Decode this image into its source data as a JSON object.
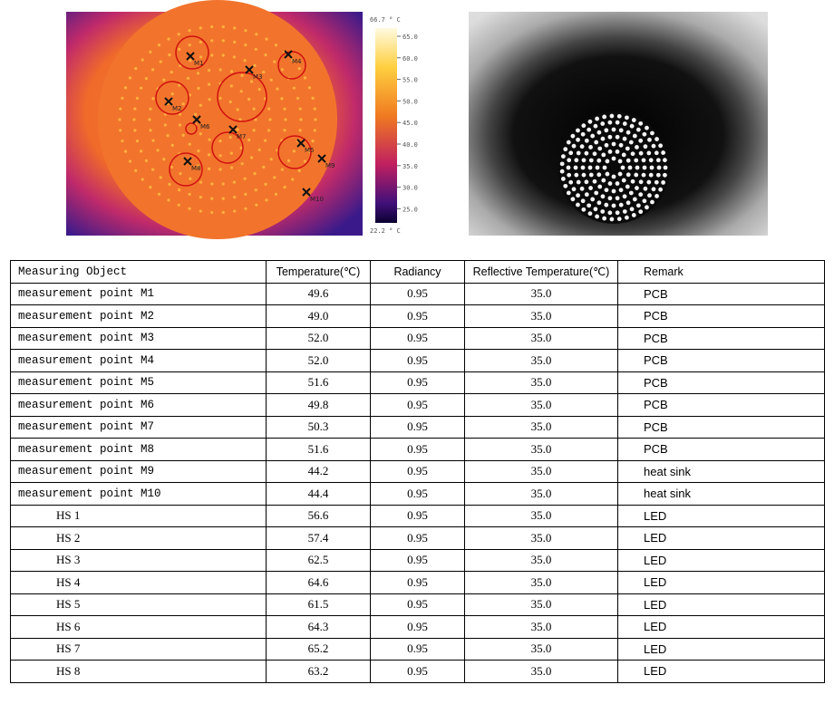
{
  "thermal_image": {
    "max_label": "66.7 ° C",
    "min_label": "22.2 ° C",
    "scale_labels": [
      "65.0",
      "60.0",
      "55.0",
      "50.0",
      "45.0",
      "40.0",
      "35.0",
      "30.0",
      "25.0"
    ],
    "markers": [
      "M1",
      "M2",
      "M3",
      "M4",
      "M5",
      "M6",
      "M7",
      "M8",
      "M9",
      "M10"
    ]
  },
  "table": {
    "header": [
      "Measuring Object",
      "Temperature(℃)",
      "Radiancy",
      "Reflective Temperature(℃)",
      "Remark"
    ],
    "rows": [
      [
        "measurement point M1",
        "49.6",
        "0.95",
        "35.0",
        "PCB"
      ],
      [
        "measurement point M2",
        "49.0",
        "0.95",
        "35.0",
        "PCB"
      ],
      [
        "measurement point M3",
        "52.0",
        "0.95",
        "35.0",
        "PCB"
      ],
      [
        "measurement point M4",
        "52.0",
        "0.95",
        "35.0",
        "PCB"
      ],
      [
        "measurement point M5",
        "51.6",
        "0.95",
        "35.0",
        "PCB"
      ],
      [
        "measurement point M6",
        "49.8",
        "0.95",
        "35.0",
        "PCB"
      ],
      [
        "measurement point M7",
        "50.3",
        "0.95",
        "35.0",
        "PCB"
      ],
      [
        "measurement point M8",
        "51.6",
        "0.95",
        "35.0",
        "PCB"
      ],
      [
        "measurement point M9",
        "44.2",
        "0.95",
        "35.0",
        "heat sink"
      ],
      [
        "measurement point M10",
        "44.4",
        "0.95",
        "35.0",
        "heat sink"
      ],
      [
        "HS 1",
        "56.6",
        "0.95",
        "35.0",
        "LED"
      ],
      [
        "HS 2",
        "57.4",
        "0.95",
        "35.0",
        "LED"
      ],
      [
        "HS 3",
        "62.5",
        "0.95",
        "35.0",
        "LED"
      ],
      [
        "HS 4",
        "64.6",
        "0.95",
        "35.0",
        "LED"
      ],
      [
        "HS 5",
        "61.5",
        "0.95",
        "35.0",
        "LED"
      ],
      [
        "HS 6",
        "64.3",
        "0.95",
        "35.0",
        "LED"
      ],
      [
        "HS 7",
        "65.2",
        "0.95",
        "35.0",
        "LED"
      ],
      [
        "HS 8",
        "63.2",
        "0.95",
        "35.0",
        "LED"
      ]
    ]
  }
}
